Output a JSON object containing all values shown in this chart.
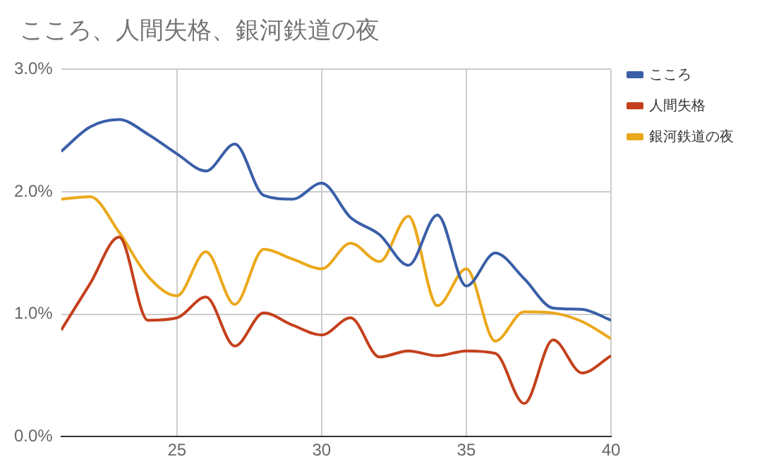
{
  "chart_data": {
    "type": "line",
    "title": "こころ、人間失格、銀河鉄道の夜",
    "x": [
      21,
      22,
      23,
      24,
      25,
      26,
      27,
      28,
      29,
      30,
      31,
      32,
      33,
      34,
      35,
      36,
      37,
      38,
      39,
      40
    ],
    "series": [
      {
        "name": "こころ",
        "color": "#3a5fa8",
        "values": [
          2.33,
          2.53,
          2.59,
          2.47,
          2.31,
          2.17,
          2.39,
          1.97,
          1.94,
          2.07,
          1.79,
          1.65,
          1.4,
          1.81,
          1.23,
          1.5,
          1.29,
          1.05,
          1.04,
          0.95
        ]
      },
      {
        "name": "人間失格",
        "color": "#c4401c",
        "values": [
          0.87,
          1.25,
          1.63,
          0.95,
          0.97,
          1.14,
          0.74,
          1.01,
          0.91,
          0.83,
          0.97,
          0.65,
          0.7,
          0.66,
          0.7,
          0.68,
          0.27,
          0.79,
          0.52,
          0.66
        ]
      },
      {
        "name": "銀河鉄道の夜",
        "color": "#eba81a",
        "values": [
          1.94,
          1.96,
          1.67,
          1.31,
          1.15,
          1.51,
          1.08,
          1.53,
          1.45,
          1.37,
          1.58,
          1.43,
          1.8,
          1.07,
          1.37,
          0.78,
          1.02,
          1.01,
          0.94,
          0.8
        ]
      }
    ],
    "xlim": [
      21,
      40
    ],
    "xticks": [
      25,
      30,
      35,
      40
    ],
    "ylim": [
      0,
      3
    ],
    "yticks": [
      {
        "value": 0,
        "label": "0.0%"
      },
      {
        "value": 1,
        "label": "1.0%"
      },
      {
        "value": 2,
        "label": "2.0%"
      },
      {
        "value": 3,
        "label": "3.0%"
      }
    ],
    "grid": true,
    "legend": "top right",
    "marker": "none",
    "line_style": "solid"
  }
}
